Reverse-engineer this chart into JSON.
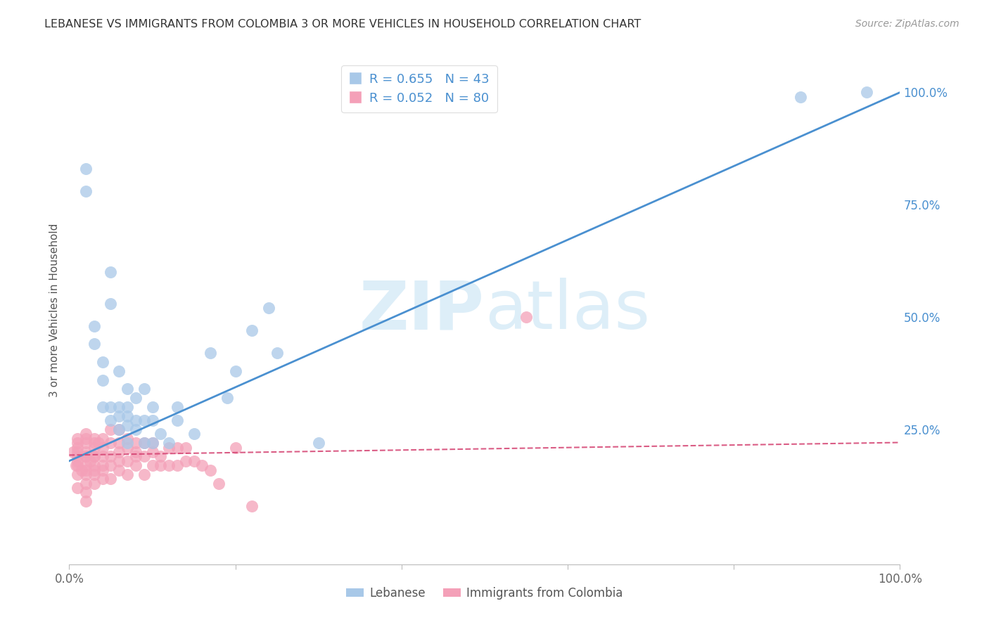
{
  "title": "LEBANESE VS IMMIGRANTS FROM COLOMBIA 3 OR MORE VEHICLES IN HOUSEHOLD CORRELATION CHART",
  "source": "Source: ZipAtlas.com",
  "ylabel": "3 or more Vehicles in Household",
  "ytick_vals": [
    0.0,
    0.25,
    0.5,
    0.75,
    1.0
  ],
  "ytick_labels": [
    "",
    "25.0%",
    "50.0%",
    "75.0%",
    "100.0%"
  ],
  "xlim": [
    0.0,
    1.0
  ],
  "ylim": [
    -0.05,
    1.08
  ],
  "legend1_label": "Lebanese",
  "legend2_label": "Immigrants from Colombia",
  "r1": 0.655,
  "n1": 43,
  "r2": 0.052,
  "n2": 80,
  "blue_color": "#a8c8e8",
  "pink_color": "#f4a0b8",
  "blue_line_color": "#4a90d0",
  "pink_line_color": "#d44070",
  "grid_color": "#c8c8c8",
  "watermark_color": "#ddeef8",
  "background_color": "#ffffff",
  "blue_line_slope": 0.82,
  "blue_line_intercept": 0.18,
  "pink_line_slope": 0.028,
  "pink_line_intercept": 0.193,
  "blue_x": [
    0.02,
    0.02,
    0.03,
    0.03,
    0.04,
    0.04,
    0.04,
    0.05,
    0.05,
    0.05,
    0.05,
    0.06,
    0.06,
    0.06,
    0.06,
    0.07,
    0.07,
    0.07,
    0.07,
    0.07,
    0.08,
    0.08,
    0.08,
    0.09,
    0.09,
    0.09,
    0.1,
    0.1,
    0.1,
    0.11,
    0.12,
    0.13,
    0.13,
    0.15,
    0.17,
    0.19,
    0.2,
    0.22,
    0.24,
    0.25,
    0.3,
    0.88,
    0.96
  ],
  "blue_y": [
    0.83,
    0.78,
    0.44,
    0.48,
    0.3,
    0.36,
    0.4,
    0.27,
    0.3,
    0.53,
    0.6,
    0.25,
    0.28,
    0.3,
    0.38,
    0.22,
    0.26,
    0.28,
    0.3,
    0.34,
    0.25,
    0.27,
    0.32,
    0.22,
    0.27,
    0.34,
    0.22,
    0.27,
    0.3,
    0.24,
    0.22,
    0.27,
    0.3,
    0.24,
    0.42,
    0.32,
    0.38,
    0.47,
    0.52,
    0.42,
    0.22,
    0.99,
    1.0
  ],
  "pink_x": [
    0.005,
    0.008,
    0.01,
    0.01,
    0.01,
    0.01,
    0.01,
    0.01,
    0.01,
    0.01,
    0.01,
    0.015,
    0.02,
    0.02,
    0.02,
    0.02,
    0.02,
    0.02,
    0.02,
    0.02,
    0.02,
    0.02,
    0.02,
    0.02,
    0.025,
    0.03,
    0.03,
    0.03,
    0.03,
    0.03,
    0.03,
    0.03,
    0.03,
    0.03,
    0.035,
    0.04,
    0.04,
    0.04,
    0.04,
    0.04,
    0.04,
    0.05,
    0.05,
    0.05,
    0.05,
    0.05,
    0.06,
    0.06,
    0.06,
    0.06,
    0.06,
    0.07,
    0.07,
    0.07,
    0.07,
    0.08,
    0.08,
    0.08,
    0.08,
    0.09,
    0.09,
    0.09,
    0.1,
    0.1,
    0.1,
    0.11,
    0.11,
    0.12,
    0.12,
    0.13,
    0.13,
    0.14,
    0.14,
    0.15,
    0.16,
    0.17,
    0.18,
    0.2,
    0.22,
    0.55
  ],
  "pink_y": [
    0.2,
    0.17,
    0.12,
    0.15,
    0.17,
    0.19,
    0.21,
    0.22,
    0.23,
    0.18,
    0.2,
    0.16,
    0.09,
    0.11,
    0.13,
    0.15,
    0.17,
    0.19,
    0.2,
    0.22,
    0.23,
    0.19,
    0.16,
    0.24,
    0.18,
    0.13,
    0.15,
    0.17,
    0.19,
    0.21,
    0.22,
    0.23,
    0.19,
    0.16,
    0.22,
    0.14,
    0.17,
    0.19,
    0.21,
    0.23,
    0.16,
    0.14,
    0.17,
    0.19,
    0.22,
    0.25,
    0.16,
    0.18,
    0.2,
    0.22,
    0.25,
    0.15,
    0.18,
    0.21,
    0.23,
    0.17,
    0.2,
    0.22,
    0.19,
    0.15,
    0.19,
    0.22,
    0.17,
    0.2,
    0.22,
    0.17,
    0.19,
    0.17,
    0.21,
    0.17,
    0.21,
    0.18,
    0.21,
    0.18,
    0.17,
    0.16,
    0.13,
    0.21,
    0.08,
    0.5
  ]
}
